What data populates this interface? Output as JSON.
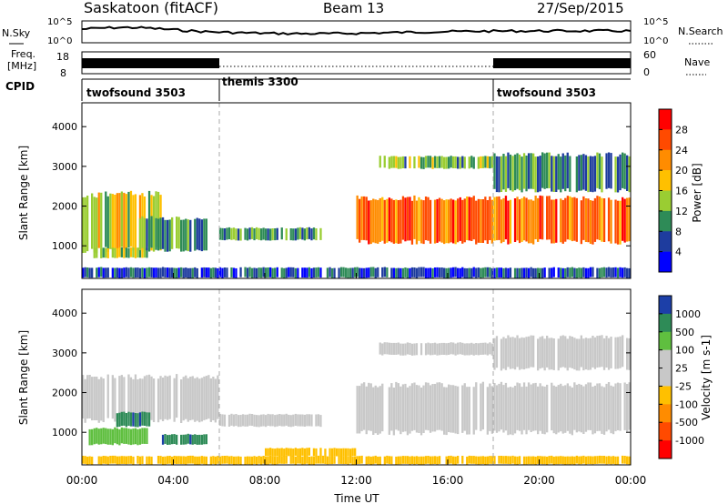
{
  "header": {
    "station": "Saskatoon (fitACF)",
    "beam": "Beam 13",
    "date": "27/Sep/2015"
  },
  "noise_panel": {
    "left_label": "N.Sky",
    "right_label": "N.Search",
    "left_ticks": [
      "10^5",
      "10^0"
    ],
    "right_ticks": [
      "10^5",
      "10^0"
    ]
  },
  "freq_panel": {
    "left_label_1": "Freq.",
    "left_label_2": "[MHz]",
    "right_label": "Nave",
    "left_ticks": [
      "18",
      "8"
    ],
    "right_ticks": [
      "60",
      "0"
    ]
  },
  "cpid_panel": {
    "label": "CPID",
    "modes": [
      {
        "name": "twofsound 3503",
        "start_hour": 0,
        "end_hour": 6
      },
      {
        "name": "themis 3300",
        "start_hour": 6,
        "end_hour": 18
      },
      {
        "name": "twofsound 3503",
        "start_hour": 18,
        "end_hour": 24
      }
    ]
  },
  "chart_data": [
    {
      "type": "heatmap",
      "name": "Power",
      "ylabel": "Slant Range [km]",
      "xlabel": "Time UT",
      "x_ticks": [
        "00:00",
        "04:00",
        "08:00",
        "12:00",
        "16:00",
        "20:00",
        "00:00"
      ],
      "xlim_hours": [
        0,
        24
      ],
      "ylim": [
        180,
        4600
      ],
      "y_ticks": [
        1000,
        2000,
        3000,
        4000
      ],
      "colorbar": {
        "label": "Power [dB]",
        "ticks": [
          "28",
          "24",
          "20",
          "16",
          "12",
          "8",
          "4"
        ],
        "colors": [
          "#ff0000",
          "#ff4a00",
          "#ff8c00",
          "#ffc000",
          "#9acd32",
          "#2e8b57",
          "#1e3c9e",
          "#0000ff"
        ]
      },
      "echo_regions": [
        {
          "t": [
            0.0,
            3.5
          ],
          "r": [
            900,
            2300
          ],
          "level": 16
        },
        {
          "t": [
            0.5,
            2.9
          ],
          "r": [
            700,
            950
          ],
          "level": 14
        },
        {
          "t": [
            2.5,
            5.5
          ],
          "r": [
            900,
            1700
          ],
          "level": 10
        },
        {
          "t": [
            6.0,
            10.5
          ],
          "r": [
            1150,
            1450
          ],
          "level": 10
        },
        {
          "t": [
            12.0,
            24.0
          ],
          "r": [
            1100,
            2200
          ],
          "level": 24
        },
        {
          "t": [
            13.0,
            18.0
          ],
          "r": [
            2950,
            3250
          ],
          "level": 12
        },
        {
          "t": [
            18.0,
            24.0
          ],
          "r": [
            2400,
            3300
          ],
          "level": 10
        },
        {
          "t": [
            0.0,
            24.0
          ],
          "r": [
            200,
            450
          ],
          "level": 6
        }
      ]
    },
    {
      "type": "heatmap",
      "name": "Velocity",
      "ylabel": "Slant Range [km]",
      "xlabel": "Time UT",
      "x_ticks": [
        "00:00",
        "04:00",
        "08:00",
        "12:00",
        "16:00",
        "20:00",
        "00:00"
      ],
      "xlim_hours": [
        0,
        24
      ],
      "ylim": [
        180,
        4600
      ],
      "y_ticks": [
        1000,
        2000,
        3000,
        4000
      ],
      "colorbar": {
        "label": "Velocity [m s-1]",
        "ticks": [
          "1000",
          "500",
          "100",
          "25",
          "-25",
          "-100",
          "-500",
          "-1000"
        ],
        "colors": [
          "#1c3fa8",
          "#2e8b57",
          "#5fbf3f",
          "#c8c8c8",
          "#c8c8c8",
          "#ffc000",
          "#ff8c00",
          "#ff4a00",
          "#ff0000"
        ]
      },
      "echo_regions": [
        {
          "t": [
            0.0,
            6.0
          ],
          "r": [
            1300,
            2400
          ],
          "level": 0
        },
        {
          "t": [
            0.3,
            2.9
          ],
          "r": [
            700,
            1100
          ],
          "level": 150
        },
        {
          "t": [
            1.5,
            3.0
          ],
          "r": [
            1150,
            1500
          ],
          "level": 600
        },
        {
          "t": [
            3.5,
            5.5
          ],
          "r": [
            700,
            950
          ],
          "level": 600
        },
        {
          "t": [
            6.0,
            10.5
          ],
          "r": [
            1150,
            1450
          ],
          "level": 0
        },
        {
          "t": [
            8.0,
            12.0
          ],
          "r": [
            400,
            600
          ],
          "level": -150
        },
        {
          "t": [
            12.0,
            24.0
          ],
          "r": [
            1000,
            2200
          ],
          "level": 0
        },
        {
          "t": [
            13.0,
            18.0
          ],
          "r": [
            2950,
            3250
          ],
          "level": 0
        },
        {
          "t": [
            18.0,
            24.0
          ],
          "r": [
            2600,
            3400
          ],
          "level": 0
        },
        {
          "t": [
            0.0,
            24.0
          ],
          "r": [
            200,
            400
          ],
          "level": -150
        }
      ]
    }
  ]
}
